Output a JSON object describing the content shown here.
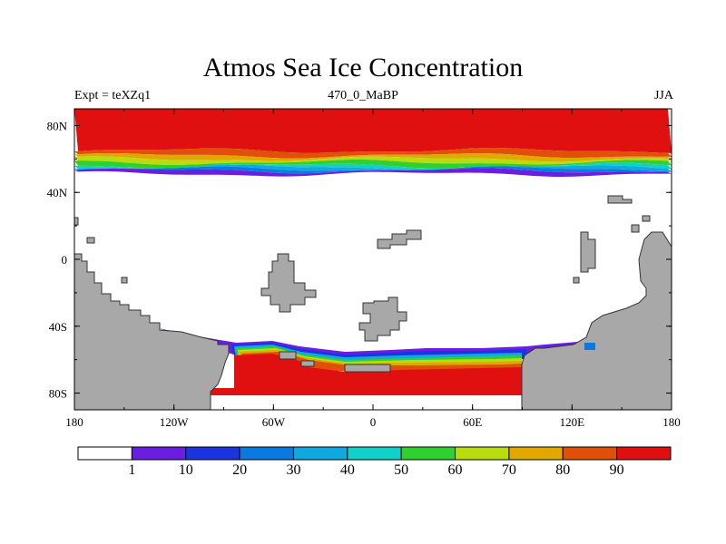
{
  "chart_data": {
    "type": "heatmap",
    "title": "Atmos Sea Ice Concentration",
    "subtitle_left": "Expt = teXZq1",
    "subtitle_center": "470_0_MaBP",
    "subtitle_right": "JJA",
    "x_range": [
      -180,
      180
    ],
    "y_range": [
      -90,
      90
    ],
    "x_ticks": [
      {
        "value": -180,
        "label": "180"
      },
      {
        "value": -120,
        "label": "120W"
      },
      {
        "value": -60,
        "label": "60W"
      },
      {
        "value": 0,
        "label": "0"
      },
      {
        "value": 60,
        "label": "60E"
      },
      {
        "value": 120,
        "label": "120E"
      },
      {
        "value": 180,
        "label": "180"
      }
    ],
    "y_ticks": [
      {
        "value": 80,
        "label": "80N"
      },
      {
        "value": 40,
        "label": "40N"
      },
      {
        "value": 0,
        "label": "0"
      },
      {
        "value": -40,
        "label": "40S"
      },
      {
        "value": -80,
        "label": "80S"
      }
    ],
    "colorbar": {
      "colors": [
        "#ffffff",
        "#6a1ee0",
        "#1a35e0",
        "#0a7ae0",
        "#10a8e0",
        "#10d0c8",
        "#30d030",
        "#b8dc10",
        "#e0a800",
        "#e05008",
        "#e01010"
      ],
      "labels": [
        "1",
        "10",
        "20",
        "30",
        "40",
        "50",
        "60",
        "70",
        "80",
        "90"
      ]
    },
    "land_color": "#a8a8a8",
    "levels": [
      1,
      10,
      20,
      30,
      40,
      50,
      60,
      70,
      80,
      90
    ],
    "northern_ice_bands": [
      {
        "min_lat": 65,
        "max_lat": 90,
        "value": 95
      },
      {
        "min_lat": 62,
        "max_lat": 65,
        "value": 85
      },
      {
        "min_lat": 60,
        "max_lat": 62,
        "value": 75
      },
      {
        "min_lat": 58,
        "max_lat": 60,
        "value": 65
      },
      {
        "min_lat": 56,
        "max_lat": 58,
        "value": 55
      },
      {
        "min_lat": 55,
        "max_lat": 56,
        "value": 45
      },
      {
        "min_lat": 54,
        "max_lat": 55,
        "value": 35
      },
      {
        "min_lat": 53,
        "max_lat": 54,
        "value": 25
      },
      {
        "min_lat": 51,
        "max_lat": 53,
        "value": 5
      }
    ]
  }
}
